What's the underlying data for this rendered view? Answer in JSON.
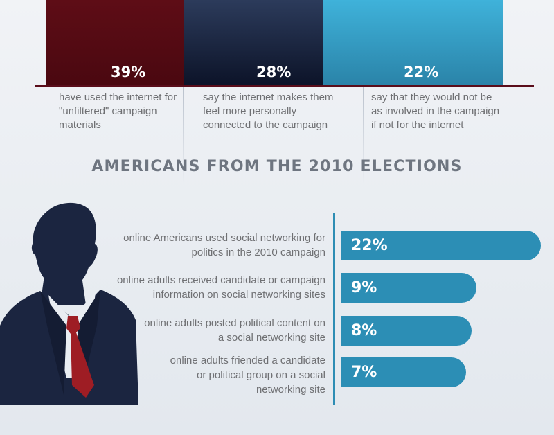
{
  "top_chart": {
    "items": [
      {
        "value": "39%",
        "description": "have used the internet for \"unfiltered\" campaign materials",
        "color": "#4f0a13"
      },
      {
        "value": "28%",
        "description": "say the internet makes them feel more personally connected to the campaign",
        "color": "#131b33"
      },
      {
        "value": "22%",
        "description": "say that they would not be as involved in the campaign if not for the internet",
        "color": "#33a0c8"
      }
    ]
  },
  "heading": "AMERICANS FROM THE 2010 ELECTIONS",
  "chart_data": [
    {
      "type": "bar",
      "categories": [
        "have used the internet for \"unfiltered\" campaign materials",
        "say the internet makes them feel more personally connected to the campaign",
        "say that they would not be as involved in the campaign if not for the internet"
      ],
      "values": [
        39,
        28,
        22
      ],
      "value_labels": [
        "39%",
        "28%",
        "22%"
      ]
    },
    {
      "type": "bar",
      "orientation": "horizontal",
      "categories": [
        "online Americans used social networking for politics in the 2010 campaign",
        "online adults received candidate or campaign information on social networking sites",
        "online adults posted political content on a social networking site",
        "online adults friended a candidate or political group on a social networking site"
      ],
      "values": [
        22,
        9,
        8,
        7
      ],
      "value_labels": [
        "22%",
        "9%",
        "8%",
        "7%"
      ],
      "bar_color": "#2c8eb5"
    }
  ],
  "bottom_chart": {
    "rows": [
      {
        "lines": [
          "online Americans used social networking for",
          "politics in the 2010 campaign"
        ],
        "value": "22%"
      },
      {
        "lines": [
          "online adults received candidate or campaign",
          "information on social networking sites"
        ],
        "value": "9%"
      },
      {
        "lines": [
          "online adults posted political content on",
          "a social networking site"
        ],
        "value": "8%"
      },
      {
        "lines": [
          "online adults friended a candidate",
          "or political group on a social",
          "networking site"
        ],
        "value": "7%"
      }
    ]
  },
  "icons": {
    "person": "person-silhouette-icon"
  }
}
